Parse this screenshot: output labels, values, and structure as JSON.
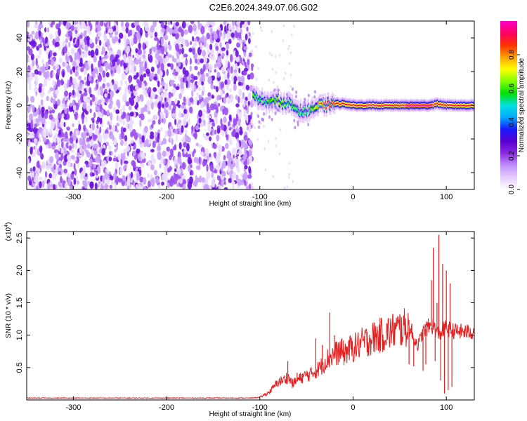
{
  "figure_title": "C2E6.2024.349.07.06.G02",
  "chart_data": [
    {
      "type": "heatmap",
      "name": "spectrogram",
      "xlabel": "Height of straight line (km)",
      "ylabel": "Frequency (Hz)",
      "xlim": [
        -350,
        130
      ],
      "ylim": [
        -50,
        50
      ],
      "xticks": [
        -300,
        -200,
        -100,
        0,
        100
      ],
      "yticks": [
        -40,
        -20,
        0,
        20,
        40
      ],
      "xtick_labels": [
        "-300",
        "-200",
        "-100",
        "0",
        "100"
      ],
      "ytick_labels": [
        "-40",
        "-20",
        "0",
        "20",
        "40"
      ],
      "colorbar": {
        "label": "Normalized spectral amplitude",
        "range": [
          0,
          1
        ],
        "ticks": [
          0.0,
          0.2,
          0.4,
          0.6,
          0.8
        ],
        "tick_labels": [
          "0.0",
          "0.2",
          "0.4",
          "0.6",
          "0.8"
        ],
        "colors": [
          "#ffffff",
          "#e6ccff",
          "#c090ff",
          "#8a2be2",
          "#5a00d0",
          "#1a1aff",
          "#00aaff",
          "#00e0e0",
          "#00e000",
          "#80ff00",
          "#ffff00",
          "#ffa000",
          "#ff3000",
          "#ff0060",
          "#ff00c8"
        ]
      },
      "noise_region_x": [
        -350,
        -108
      ],
      "signal_track": {
        "x": [
          -108,
          -100,
          -90,
          -80,
          -75,
          -70,
          -65,
          -60,
          -55,
          -50,
          -45,
          -40,
          -35,
          -30,
          -25,
          -20,
          -10,
          0,
          20,
          40,
          60,
          80,
          90,
          100,
          130
        ],
        "y": [
          5,
          4,
          2,
          3,
          1,
          2,
          -1,
          -2,
          -4,
          -3,
          -2,
          -1,
          0,
          0,
          1,
          1,
          1,
          0,
          0,
          0,
          0,
          0,
          1,
          0,
          0
        ],
        "amplitude": [
          0.6,
          0.55,
          0.6,
          0.65,
          0.6,
          0.55,
          0.6,
          0.55,
          0.5,
          0.55,
          0.6,
          0.7,
          0.8,
          0.85,
          0.85,
          0.9,
          0.9,
          0.9,
          0.92,
          0.9,
          0.93,
          0.95,
          0.9,
          0.9,
          0.85
        ]
      }
    },
    {
      "type": "line",
      "name": "snr",
      "xlabel": "Height of straight line (km)",
      "ylabel": "SNR (10 * v/v)",
      "scale_label": "(x10",
      "scale_exponent": "4",
      "scale_close": ")",
      "xlim": [
        -350,
        130
      ],
      "ylim": [
        0,
        2.6
      ],
      "xticks": [
        -300,
        -200,
        -100,
        0,
        100
      ],
      "yticks": [
        0.5,
        1.0,
        1.5,
        2.0,
        2.5
      ],
      "xtick_labels": [
        "-300",
        "-200",
        "-100",
        "0",
        "100"
      ],
      "ytick_labels": [
        "0.5",
        "1.0",
        "1.5",
        "2.0",
        "2.5"
      ],
      "color": "#e62020",
      "x": [
        -350,
        -300,
        -250,
        -200,
        -150,
        -110,
        -100,
        -95,
        -90,
        -85,
        -80,
        -75,
        -70,
        -65,
        -60,
        -55,
        -50,
        -45,
        -40,
        -35,
        -30,
        -25,
        -20,
        -15,
        -10,
        -5,
        0,
        10,
        20,
        30,
        40,
        50,
        60,
        65,
        70,
        75,
        80,
        85,
        88,
        90,
        92,
        95,
        98,
        100,
        102,
        105,
        110,
        120,
        130
      ],
      "y": [
        0.03,
        0.03,
        0.03,
        0.03,
        0.03,
        0.03,
        0.04,
        0.08,
        0.12,
        0.2,
        0.28,
        0.3,
        0.36,
        0.25,
        0.3,
        0.35,
        0.38,
        0.4,
        0.45,
        0.5,
        0.6,
        0.66,
        0.7,
        0.75,
        0.72,
        0.78,
        0.8,
        0.88,
        0.95,
        1.0,
        1.05,
        1.1,
        1.12,
        0.95,
        0.85,
        1.05,
        1.12,
        1.15,
        1.1,
        1.05,
        1.0,
        1.05,
        1.1,
        1.12,
        1.1,
        1.08,
        1.06,
        1.05,
        1.05
      ],
      "spikes": [
        {
          "x": 60,
          "y": 0.55
        },
        {
          "x": 63,
          "y": 1.18
        },
        {
          "x": 65,
          "y": 0.52
        },
        {
          "x": 75,
          "y": 0.45
        },
        {
          "x": 78,
          "y": 0.55
        },
        {
          "x": 84,
          "y": 1.85
        },
        {
          "x": 86,
          "y": 2.35
        },
        {
          "x": 88,
          "y": 0.6
        },
        {
          "x": 90,
          "y": 1.5
        },
        {
          "x": 92,
          "y": 2.55
        },
        {
          "x": 94,
          "y": 0.3
        },
        {
          "x": 96,
          "y": 2.1
        },
        {
          "x": 98,
          "y": 0.1
        },
        {
          "x": 100,
          "y": 2.0
        },
        {
          "x": 102,
          "y": 0.15
        },
        {
          "x": 104,
          "y": 1.8
        },
        {
          "x": 106,
          "y": 0.2
        },
        {
          "x": -40,
          "y": 0.95
        },
        {
          "x": -33,
          "y": 0.85
        },
        {
          "x": -25,
          "y": 1.35
        },
        {
          "x": -20,
          "y": 1.0
        },
        {
          "x": -12,
          "y": 0.95
        },
        {
          "x": 15,
          "y": 1.05
        },
        {
          "x": -70,
          "y": 0.6
        },
        {
          "x": -88,
          "y": 0.12
        },
        {
          "x": -60,
          "y": 0.42
        }
      ]
    }
  ]
}
